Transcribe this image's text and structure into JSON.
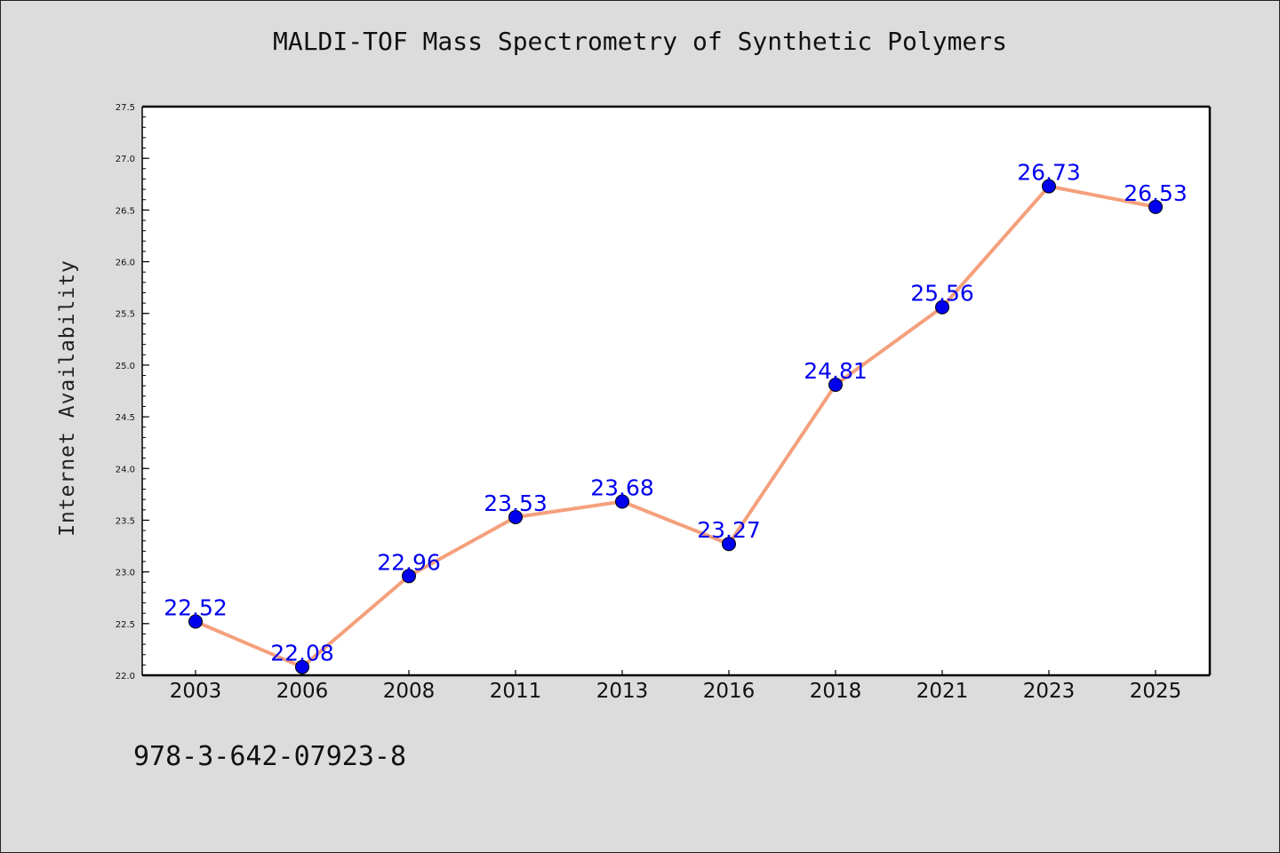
{
  "chart_data": {
    "type": "line",
    "title": "MALDI-TOF Mass Spectrometry of Synthetic Polymers",
    "xlabel": "",
    "ylabel": "Internet Availability",
    "categories": [
      "2003",
      "2006",
      "2008",
      "2011",
      "2013",
      "2016",
      "2018",
      "2021",
      "2023",
      "2025"
    ],
    "series": [
      {
        "values": [
          22.52,
          22.08,
          22.96,
          23.53,
          23.68,
          23.27,
          24.81,
          25.56,
          26.73,
          26.53
        ]
      }
    ],
    "data_labels": [
      "22.52",
      "22.08",
      "22.96",
      "23.53",
      "23.68",
      "23.27",
      "24.81",
      "25.56",
      "26.73",
      "26.53"
    ],
    "ylim": [
      22.0,
      27.5
    ],
    "yticks": [
      "22.0",
      "22.5",
      "23.0",
      "23.5",
      "24.0",
      "24.5",
      "25.0",
      "25.5",
      "26.0",
      "26.5",
      "27.0",
      "27.5"
    ],
    "grid": false,
    "legend": "none",
    "colors": {
      "line": "#f4a07c",
      "marker": "#0000ee",
      "label": "#0000ee",
      "background": "#dcdcdc",
      "plot_area": "#ffffff"
    }
  },
  "footer": {
    "code": "978-3-642-07923-8"
  }
}
